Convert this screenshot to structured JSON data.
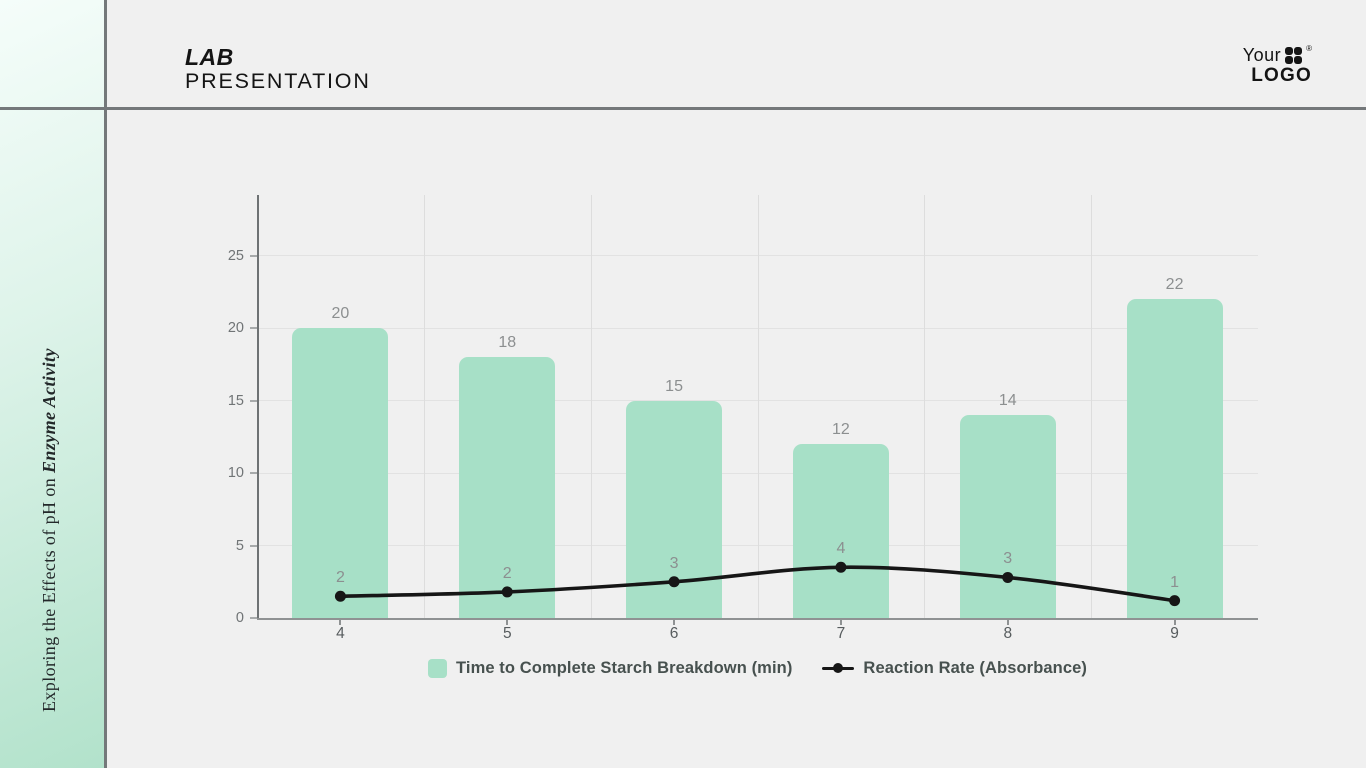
{
  "header": {
    "title_line1": "LAB",
    "title_line2": "PRESENTATION"
  },
  "logo": {
    "word1": "Your",
    "word2": "LOGO",
    "registered": "®",
    "icon": "clover-icon"
  },
  "sidebar": {
    "title_prefix": "Exploring the Effects of pH on ",
    "title_emphasis": "Enzyme Activity"
  },
  "colors": {
    "accent_green": "#a7e0c7",
    "line_black": "#161616",
    "background": "#f0f0f0",
    "sidebar_gradient_start": "#f5fdfa",
    "sidebar_gradient_end": "#b2e2cb",
    "divider_gray": "#74787a"
  },
  "chart_data": {
    "type": "bar",
    "categories": [
      "4",
      "5",
      "6",
      "7",
      "8",
      "9"
    ],
    "series": [
      {
        "name": "Time to Complete Starch Breakdown (min)",
        "type": "bar",
        "values": [
          20,
          18,
          15,
          12,
          14,
          22
        ],
        "labels": [
          "20",
          "18",
          "15",
          "12",
          "14",
          "22"
        ],
        "color": "#a7e0c7"
      },
      {
        "name": "Reaction Rate (Absorbance)",
        "type": "line",
        "values": [
          1.5,
          1.8,
          2.5,
          3.5,
          2.8,
          1.2
        ],
        "labels": [
          "2",
          "2",
          "3",
          "4",
          "3",
          "1"
        ],
        "color": "#161616"
      }
    ],
    "y_ticks": [
      0,
      5,
      10,
      15,
      20,
      25
    ],
    "ylim": [
      0,
      29.2
    ],
    "grid": true,
    "legend_position": "bottom"
  }
}
